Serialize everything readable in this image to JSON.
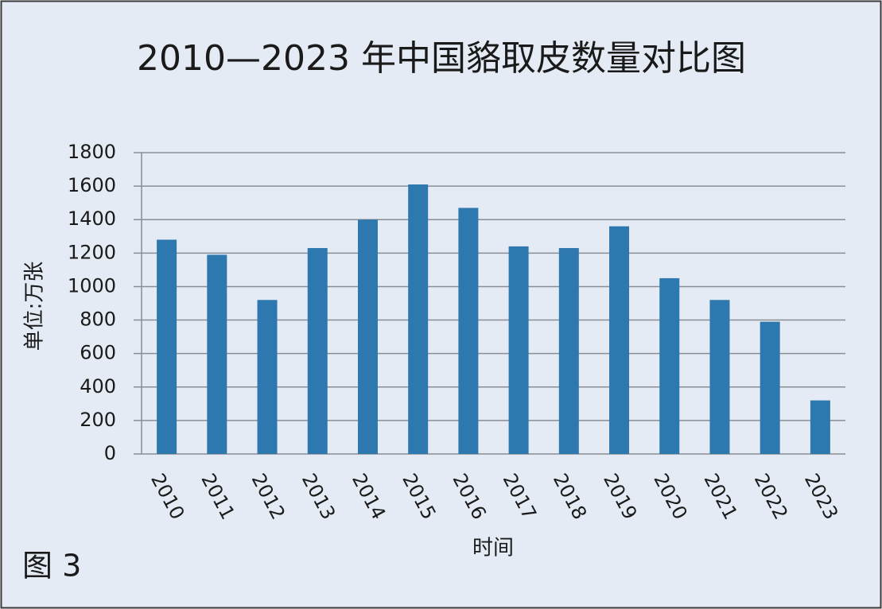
{
  "chart_data": {
    "type": "bar",
    "title": "2010—2023 年中国貉取皮数量对比图",
    "y_label": "单位:万张",
    "x_label": "时间",
    "figure_label": "图 3",
    "categories": [
      "2010",
      "2011",
      "2012",
      "2013",
      "2014",
      "2015",
      "2016",
      "2017",
      "2018",
      "2019",
      "2020",
      "2021",
      "2022",
      "2023"
    ],
    "values": [
      1280,
      1190,
      920,
      1230,
      1400,
      1610,
      1470,
      1240,
      1230,
      1360,
      1050,
      920,
      790,
      320
    ],
    "color": "#2e78b0",
    "ylim": [
      0,
      1800
    ],
    "yticks": [
      0,
      200,
      400,
      600,
      800,
      1000,
      1200,
      1400,
      1600,
      1800
    ],
    "grid": true
  }
}
